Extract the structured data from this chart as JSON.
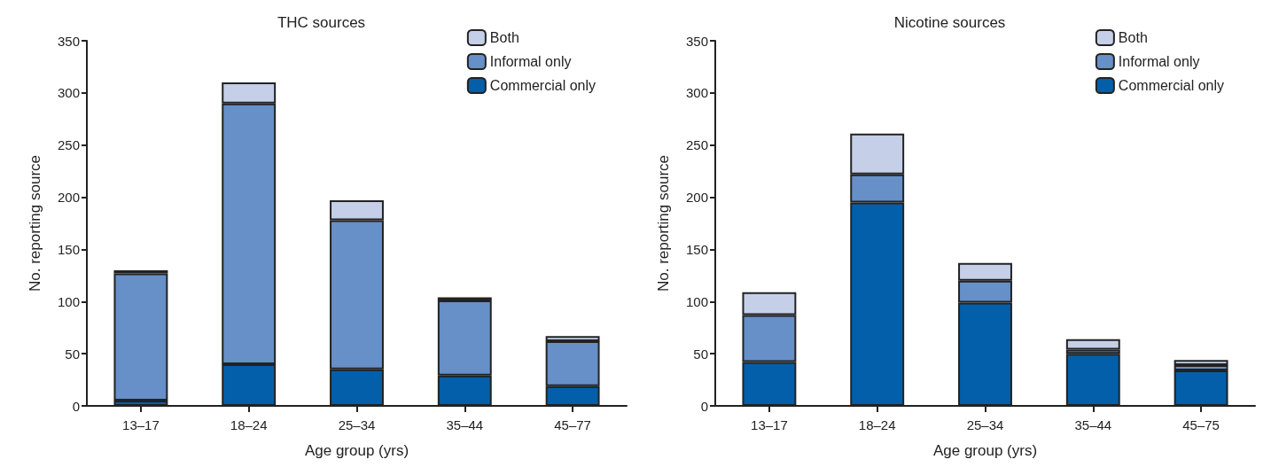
{
  "chart_data": [
    {
      "type": "bar",
      "title": "THC sources",
      "xlabel": "Age group (yrs)",
      "ylabel": "No. reporting source",
      "categories": [
        "13–17",
        "18–24",
        "25–34",
        "35–44",
        "45–77"
      ],
      "stacked": true,
      "ylim": [
        0,
        350
      ],
      "yticks": [
        0,
        50,
        100,
        150,
        200,
        250,
        300,
        350
      ],
      "grid": false,
      "legend": "top right",
      "series": [
        {
          "name": "Commercial only",
          "color": "#035fa9",
          "values": [
            5,
            40,
            35,
            29,
            19
          ]
        },
        {
          "name": "Informal only",
          "color": "#678fc8",
          "values": [
            122,
            250,
            143,
            72,
            43
          ]
        },
        {
          "name": "Both",
          "color": "#c5cfe8",
          "values": [
            3,
            20,
            19,
            3,
            5
          ]
        }
      ]
    },
    {
      "type": "bar",
      "title": "Nicotine sources",
      "xlabel": "Age group (yrs)",
      "ylabel": "No. reporting source",
      "categories": [
        "13–17",
        "18–24",
        "25–34",
        "35–44",
        "45–75"
      ],
      "stacked": true,
      "ylim": [
        0,
        350
      ],
      "yticks": [
        0,
        50,
        100,
        150,
        200,
        250,
        300,
        350
      ],
      "grid": false,
      "legend": "top right",
      "series": [
        {
          "name": "Commercial only",
          "color": "#035fa9",
          "values": [
            42,
            195,
            99,
            50,
            34
          ]
        },
        {
          "name": "Informal only",
          "color": "#678fc8",
          "values": [
            45,
            27,
            21,
            4,
            5
          ]
        },
        {
          "name": "Both",
          "color": "#c5cfe8",
          "values": [
            22,
            39,
            17,
            10,
            5
          ]
        }
      ]
    }
  ]
}
